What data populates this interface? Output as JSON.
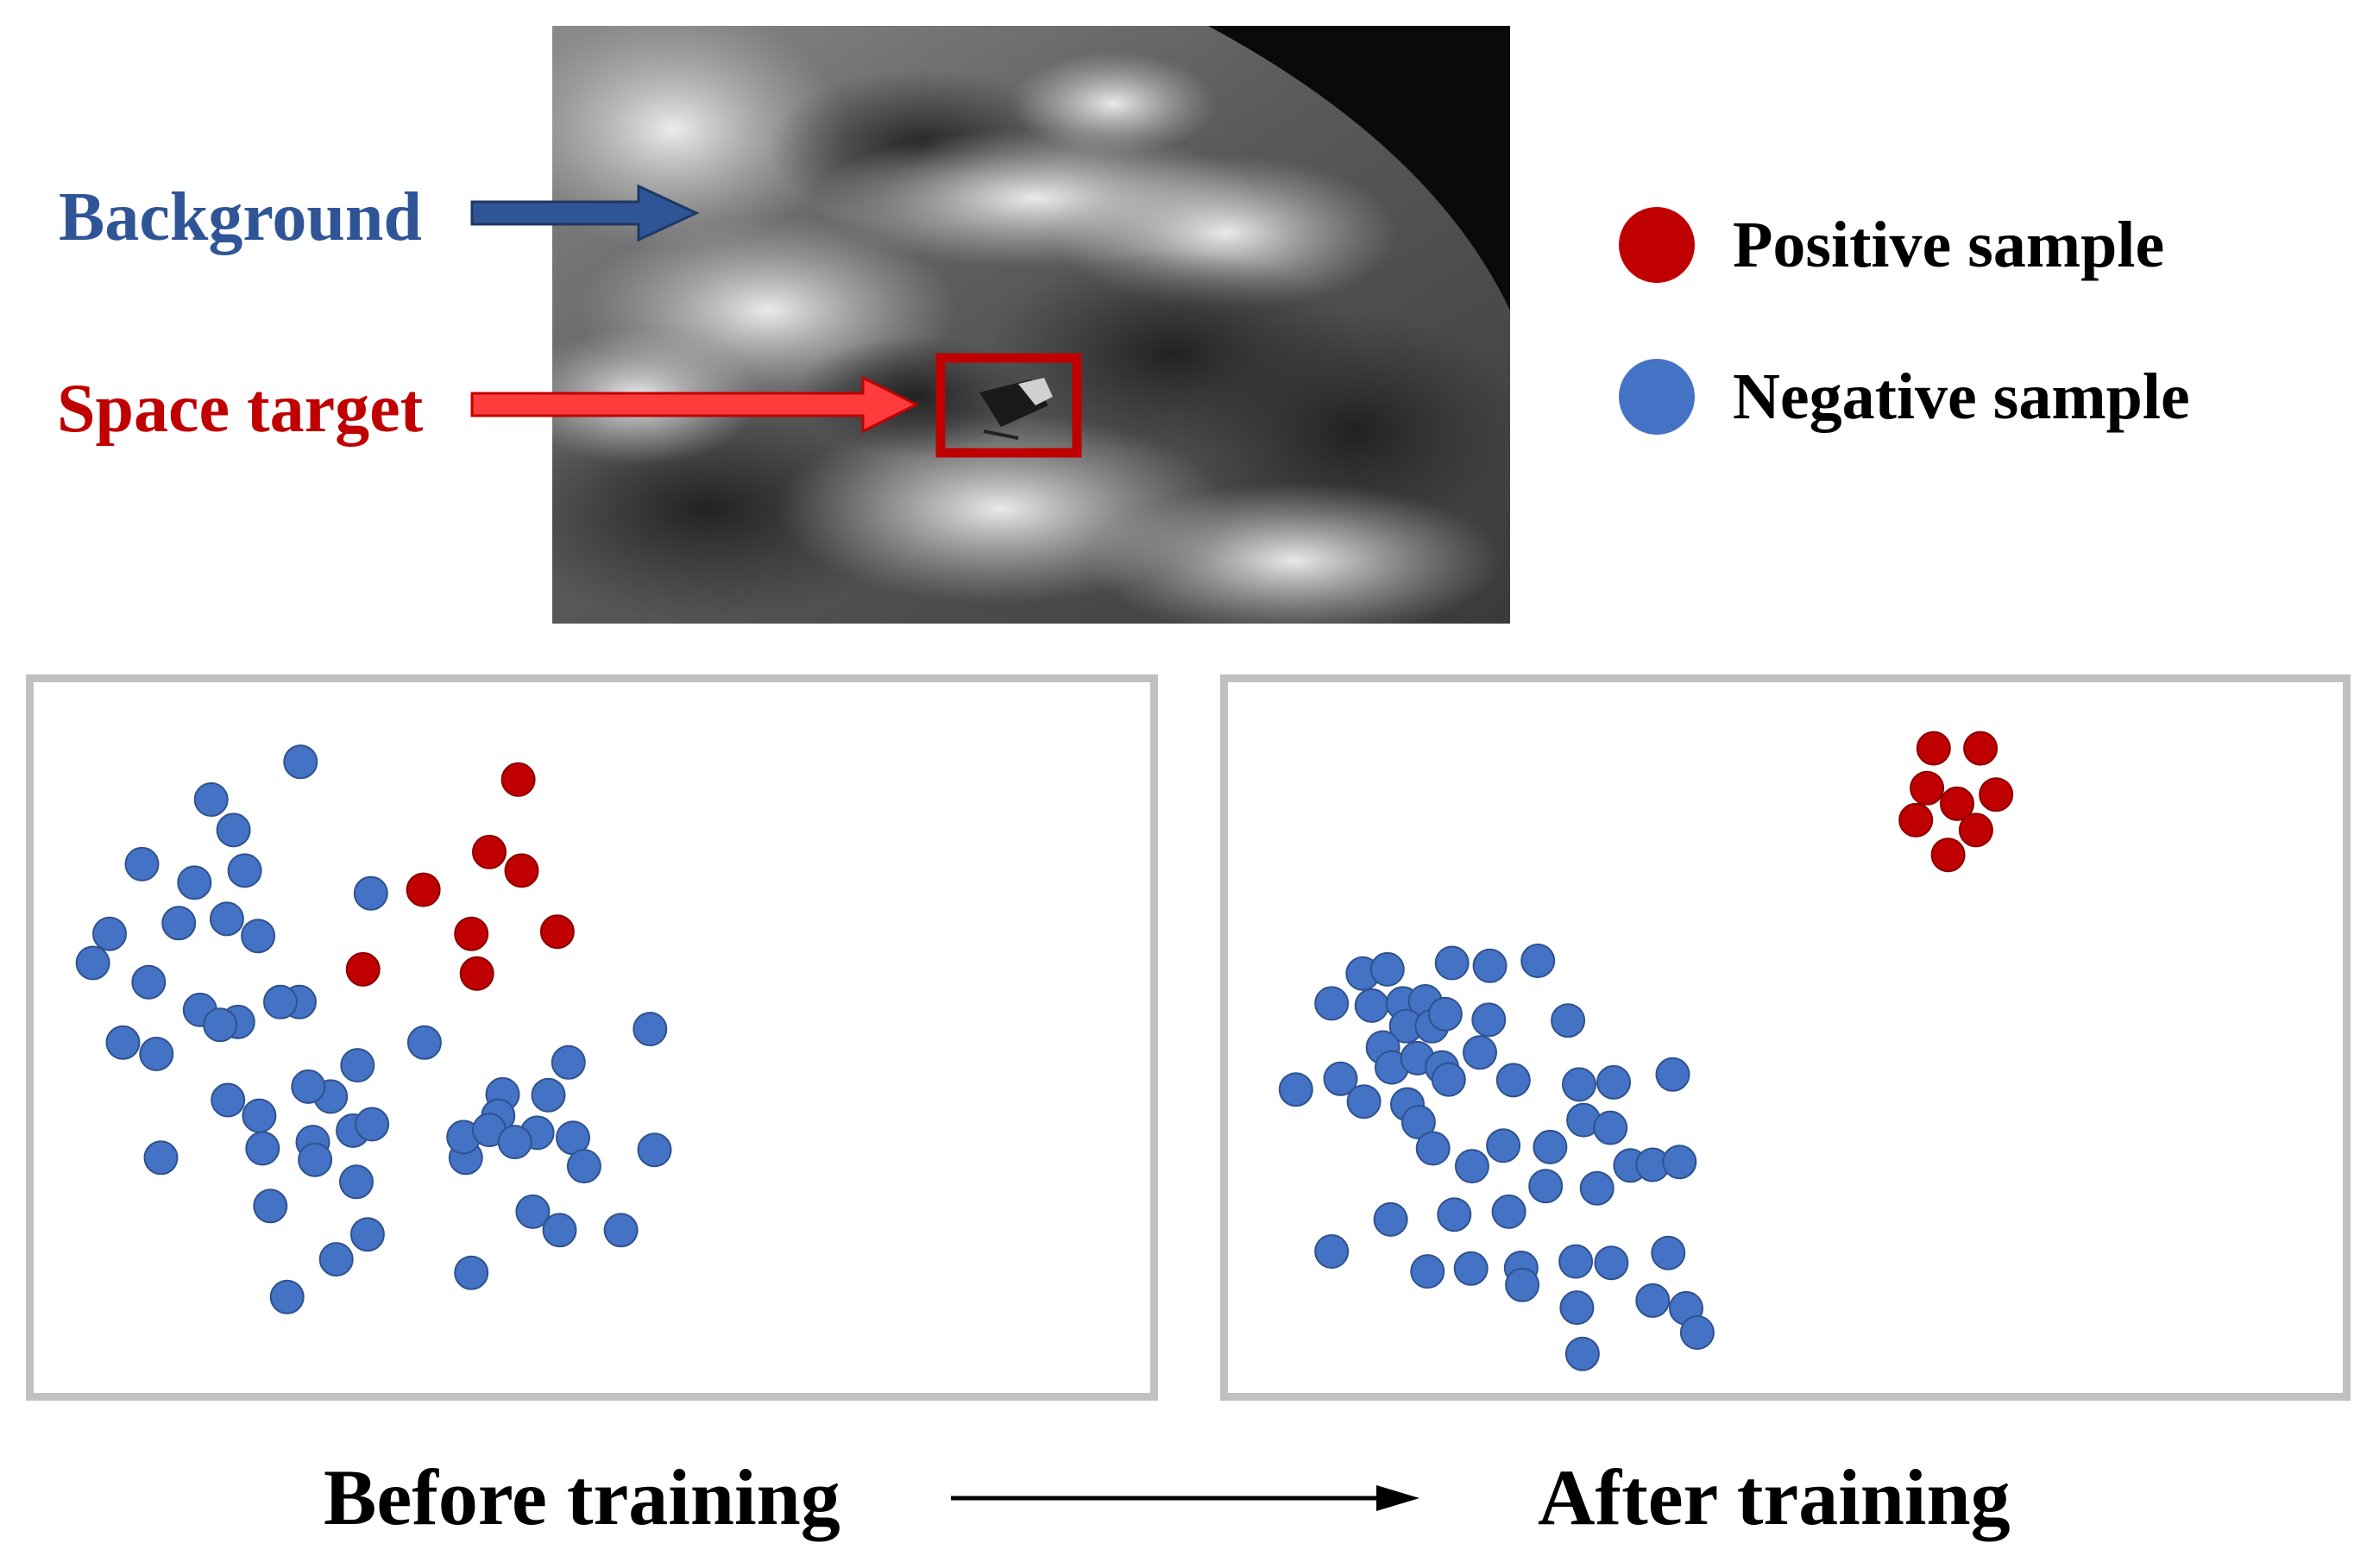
{
  "labels": {
    "background": "Background",
    "space_target": "Space target"
  },
  "legend": [
    {
      "label": "Positive sample",
      "color": "#c00000"
    },
    {
      "label": "Negative sample",
      "color": "#4472c4"
    }
  ],
  "captions": {
    "before": "Before training",
    "after": "After training"
  },
  "colors": {
    "background_label": "#2f5597",
    "space_target_label": "#c00000",
    "positive": "#c00000",
    "negative": "#4472c4",
    "panel_border": "#c0c0c0"
  },
  "chart_data": [
    {
      "type": "scatter",
      "series": [
        {
          "name": "Positive sample",
          "points": [
            [
              0.434,
              0.137
            ],
            [
              0.408,
              0.239
            ],
            [
              0.437,
              0.265
            ],
            [
              0.349,
              0.292
            ],
            [
              0.392,
              0.354
            ],
            [
              0.469,
              0.351
            ],
            [
              0.295,
              0.404
            ],
            [
              0.397,
              0.41
            ]
          ]
        },
        {
          "name": "Negative sample",
          "points": [
            [
              0.239,
              0.112
            ],
            [
              0.159,
              0.165
            ],
            [
              0.179,
              0.208
            ],
            [
              0.097,
              0.256
            ],
            [
              0.144,
              0.282
            ],
            [
              0.189,
              0.265
            ],
            [
              0.302,
              0.297
            ],
            [
              0.068,
              0.354
            ],
            [
              0.13,
              0.339
            ],
            [
              0.173,
              0.333
            ],
            [
              0.201,
              0.357
            ],
            [
              0.053,
              0.395
            ],
            [
              0.103,
              0.422
            ],
            [
              0.149,
              0.461
            ],
            [
              0.183,
              0.478
            ],
            [
              0.238,
              0.45
            ],
            [
              0.08,
              0.507
            ],
            [
              0.11,
              0.523
            ],
            [
              0.167,
              0.482
            ],
            [
              0.221,
              0.45
            ],
            [
              0.266,
              0.583
            ],
            [
              0.29,
              0.539
            ],
            [
              0.246,
              0.569
            ],
            [
              0.174,
              0.588
            ],
            [
              0.202,
              0.61
            ],
            [
              0.205,
              0.656
            ],
            [
              0.114,
              0.669
            ],
            [
              0.25,
              0.647
            ],
            [
              0.286,
              0.631
            ],
            [
              0.303,
              0.622
            ],
            [
              0.289,
              0.703
            ],
            [
              0.35,
              0.507
            ],
            [
              0.387,
              0.669
            ],
            [
              0.42,
              0.58
            ],
            [
              0.461,
              0.581
            ],
            [
              0.479,
              0.535
            ],
            [
              0.451,
              0.634
            ],
            [
              0.416,
              0.61
            ],
            [
              0.552,
              0.488
            ],
            [
              0.483,
              0.641
            ],
            [
              0.556,
              0.658
            ],
            [
              0.493,
              0.681
            ],
            [
              0.385,
              0.64
            ],
            [
              0.408,
              0.63
            ],
            [
              0.431,
              0.647
            ],
            [
              0.447,
              0.745
            ],
            [
              0.471,
              0.771
            ],
            [
              0.526,
              0.771
            ],
            [
              0.271,
              0.812
            ],
            [
              0.299,
              0.777
            ],
            [
              0.392,
              0.831
            ],
            [
              0.227,
              0.865
            ],
            [
              0.212,
              0.737
            ],
            [
              0.252,
              0.672
            ]
          ]
        }
      ]
    },
    {
      "type": "scatter",
      "series": [
        {
          "name": "Positive sample",
          "points": [
            [
              0.633,
              0.093
            ],
            [
              0.675,
              0.093
            ],
            [
              0.627,
              0.149
            ],
            [
              0.654,
              0.171
            ],
            [
              0.689,
              0.158
            ],
            [
              0.617,
              0.194
            ],
            [
              0.671,
              0.208
            ],
            [
              0.646,
              0.243
            ]
          ]
        },
        {
          "name": "Negative sample",
          "points": [
            [
              0.121,
              0.41
            ],
            [
              0.143,
              0.404
            ],
            [
              0.201,
              0.395
            ],
            [
              0.235,
              0.399
            ],
            [
              0.278,
              0.392
            ],
            [
              0.093,
              0.452
            ],
            [
              0.129,
              0.455
            ],
            [
              0.157,
              0.452
            ],
            [
              0.177,
              0.449
            ],
            [
              0.16,
              0.484
            ],
            [
              0.183,
              0.484
            ],
            [
              0.195,
              0.467
            ],
            [
              0.234,
              0.475
            ],
            [
              0.305,
              0.476
            ],
            [
              0.139,
              0.514
            ],
            [
              0.147,
              0.542
            ],
            [
              0.17,
              0.529
            ],
            [
              0.192,
              0.542
            ],
            [
              0.226,
              0.521
            ],
            [
              0.061,
              0.573
            ],
            [
              0.101,
              0.558
            ],
            [
              0.122,
              0.59
            ],
            [
              0.161,
              0.594
            ],
            [
              0.198,
              0.559
            ],
            [
              0.256,
              0.56
            ],
            [
              0.315,
              0.566
            ],
            [
              0.346,
              0.563
            ],
            [
              0.399,
              0.552
            ],
            [
              0.171,
              0.619
            ],
            [
              0.184,
              0.656
            ],
            [
              0.219,
              0.681
            ],
            [
              0.247,
              0.652
            ],
            [
              0.289,
              0.654
            ],
            [
              0.319,
              0.616
            ],
            [
              0.285,
              0.709
            ],
            [
              0.343,
              0.627
            ],
            [
              0.361,
              0.68
            ],
            [
              0.381,
              0.679
            ],
            [
              0.405,
              0.675
            ],
            [
              0.331,
              0.712
            ],
            [
              0.252,
              0.745
            ],
            [
              0.203,
              0.749
            ],
            [
              0.146,
              0.756
            ],
            [
              0.093,
              0.801
            ],
            [
              0.179,
              0.829
            ],
            [
              0.218,
              0.825
            ],
            [
              0.263,
              0.824
            ],
            [
              0.312,
              0.815
            ],
            [
              0.344,
              0.817
            ],
            [
              0.395,
              0.803
            ],
            [
              0.264,
              0.848
            ],
            [
              0.313,
              0.88
            ],
            [
              0.381,
              0.87
            ],
            [
              0.411,
              0.881
            ],
            [
              0.421,
              0.915
            ],
            [
              0.318,
              0.945
            ]
          ]
        }
      ]
    }
  ]
}
